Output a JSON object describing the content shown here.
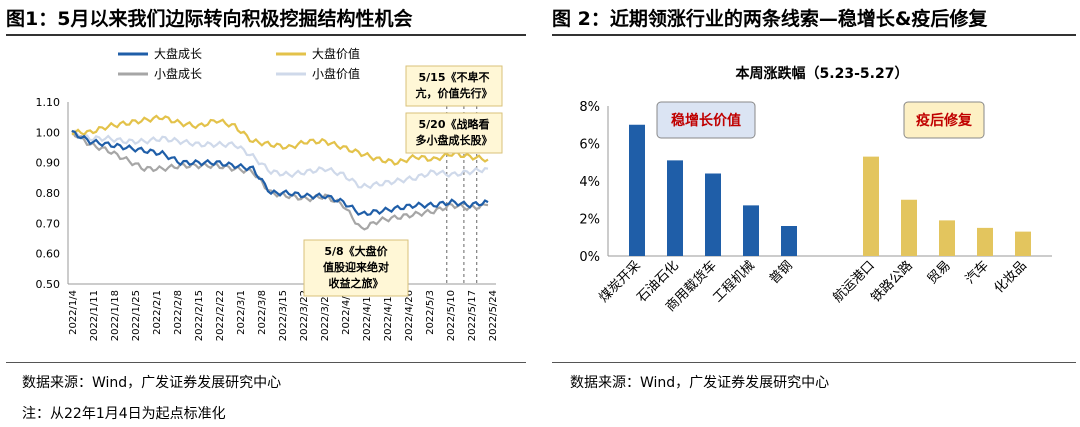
{
  "left": {
    "title": "图1：5月以来我们边际转向积极挖掘结构性机会",
    "source": "数据来源：Wind，广发证券发展研究中心",
    "note": "注：从22年1月4日为起点标准化",
    "chart_data": {
      "type": "line",
      "ylim": [
        0.5,
        1.1
      ],
      "yticks": [
        "1.10",
        "1.00",
        "0.90",
        "0.80",
        "0.70",
        "0.60",
        "0.50"
      ],
      "xticks": [
        "2022/1/4",
        "2022/1/11",
        "2022/1/18",
        "2022/1/25",
        "2022/2/1",
        "2022/2/8",
        "2022/2/15",
        "2022/2/22",
        "2022/3/1",
        "2022/3/8",
        "2022/3/15",
        "2022/3/22",
        "2022/3/29",
        "2022/4/5",
        "2022/4/12",
        "2022/4/19",
        "2022/4/26",
        "2022/5/3",
        "2022/5/10",
        "2022/5/17",
        "2022/5/24"
      ],
      "series": [
        {
          "name": "大盘成长",
          "color": "#1f5ea8",
          "values": [
            1.0,
            0.97,
            0.96,
            0.95,
            0.94,
            0.93,
            0.9,
            0.9,
            0.9,
            0.89,
            0.88,
            0.8,
            0.8,
            0.79,
            0.79,
            0.77,
            0.73,
            0.74,
            0.75,
            0.76,
            0.76,
            0.77,
            0.76,
            0.77
          ]
        },
        {
          "name": "大盘价值",
          "color": "#e3c24a",
          "values": [
            1.0,
            1.0,
            1.02,
            1.03,
            1.04,
            1.05,
            1.03,
            1.02,
            1.04,
            1.02,
            0.97,
            0.96,
            0.95,
            0.97,
            0.97,
            0.95,
            0.93,
            0.91,
            0.9,
            0.92,
            0.91,
            0.93,
            0.92,
            0.91
          ]
        },
        {
          "name": "小盘成长",
          "color": "#a6a6a6",
          "values": [
            1.0,
            0.96,
            0.94,
            0.91,
            0.88,
            0.88,
            0.89,
            0.89,
            0.89,
            0.88,
            0.87,
            0.8,
            0.79,
            0.78,
            0.79,
            0.76,
            0.68,
            0.71,
            0.72,
            0.73,
            0.74,
            0.76,
            0.75,
            0.76
          ]
        },
        {
          "name": "小盘价值",
          "color": "#cfd9ea",
          "values": [
            1.0,
            0.98,
            0.98,
            0.97,
            0.97,
            0.98,
            0.97,
            0.96,
            0.96,
            0.96,
            0.92,
            0.87,
            0.86,
            0.87,
            0.88,
            0.86,
            0.82,
            0.83,
            0.84,
            0.85,
            0.87,
            0.86,
            0.87,
            0.88
          ]
        }
      ],
      "annotations": [
        {
          "line1": "5/15《不卑不",
          "line2": "亢，价值先行》"
        },
        {
          "line1": "5/20《战略看",
          "line2": "多小盘成长股》"
        },
        {
          "line1": "5/8《大盘价",
          "line2": "值股迎来绝对",
          "line3": "收益之旅》"
        }
      ]
    }
  },
  "right": {
    "title": "图 2：近期领涨行业的两条线索—稳增长&疫后修复",
    "source": "数据来源：Wind，广发证券发展研究中心",
    "chart_data": {
      "type": "bar",
      "title": "本周涨跌幅（5.23-5.27）",
      "ylim": [
        0,
        8
      ],
      "yticks": [
        "8%",
        "6%",
        "4%",
        "2%",
        "0%"
      ],
      "groups": [
        {
          "label": "稳增长价值",
          "color": "#1f5ea8",
          "box_bg": "#dbe4f3",
          "text_color": "#c00000",
          "categories": [
            "煤炭开采",
            "石油石化",
            "商用载货车",
            "工程机械",
            "普钢"
          ],
          "values": [
            7.0,
            5.1,
            4.4,
            2.7,
            1.6
          ]
        },
        {
          "label": "疫后修复",
          "color": "#e3c55e",
          "box_bg": "#fdf0c4",
          "text_color": "#c00000",
          "categories": [
            "航运港口",
            "铁路公路",
            "贸易",
            "汽车",
            "化妆品"
          ],
          "values": [
            5.3,
            3.0,
            1.9,
            1.5,
            1.3
          ]
        }
      ]
    }
  }
}
